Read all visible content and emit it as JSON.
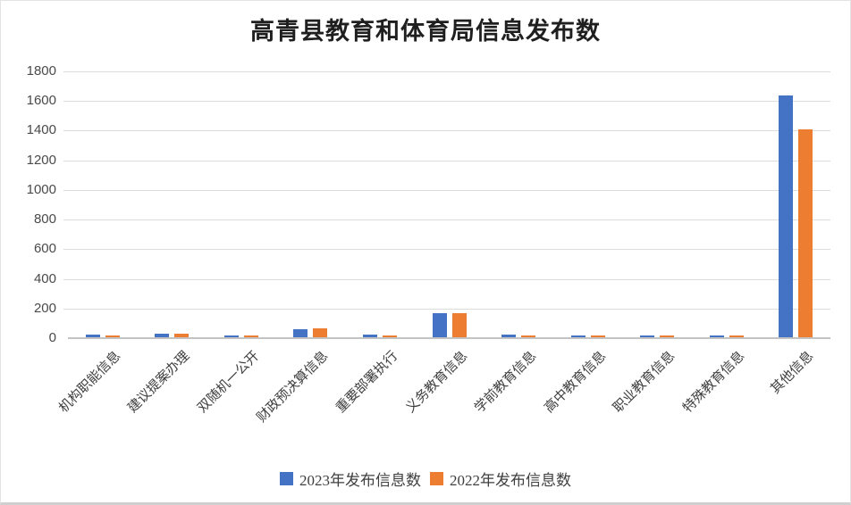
{
  "chart_data": {
    "type": "bar",
    "title": "高青县教育和体育局信息发布数",
    "categories": [
      "机构职能信息",
      "建议提案办理",
      "双随机一公开",
      "财政预决算信息",
      "重要部署执行",
      "义务教育信息",
      "学前教育信息",
      "高中教育信息",
      "职业教育信息",
      "特殊教育信息",
      "其他信息"
    ],
    "series": [
      {
        "name": "2023年发布信息数",
        "color": "#4472C4",
        "values": [
          20,
          25,
          15,
          55,
          20,
          160,
          20,
          12,
          12,
          12,
          1630
        ]
      },
      {
        "name": "2022年发布信息数",
        "color": "#ED7D31",
        "values": [
          10,
          25,
          12,
          58,
          15,
          160,
          10,
          10,
          12,
          12,
          1400
        ]
      }
    ],
    "ylim": [
      0,
      1800
    ],
    "ytick_step": 200,
    "ytick_labels": [
      "0",
      "200",
      "400",
      "600",
      "800",
      "1000",
      "1200",
      "1400",
      "1600",
      "1800"
    ],
    "grid": "horizontal",
    "legend_position": "bottom",
    "colors": {
      "gridline": "#dcdcdc",
      "axis_line": "#c3c3c3",
      "tick_label": "#3f3f3f",
      "title": "#1f1f1f"
    }
  }
}
